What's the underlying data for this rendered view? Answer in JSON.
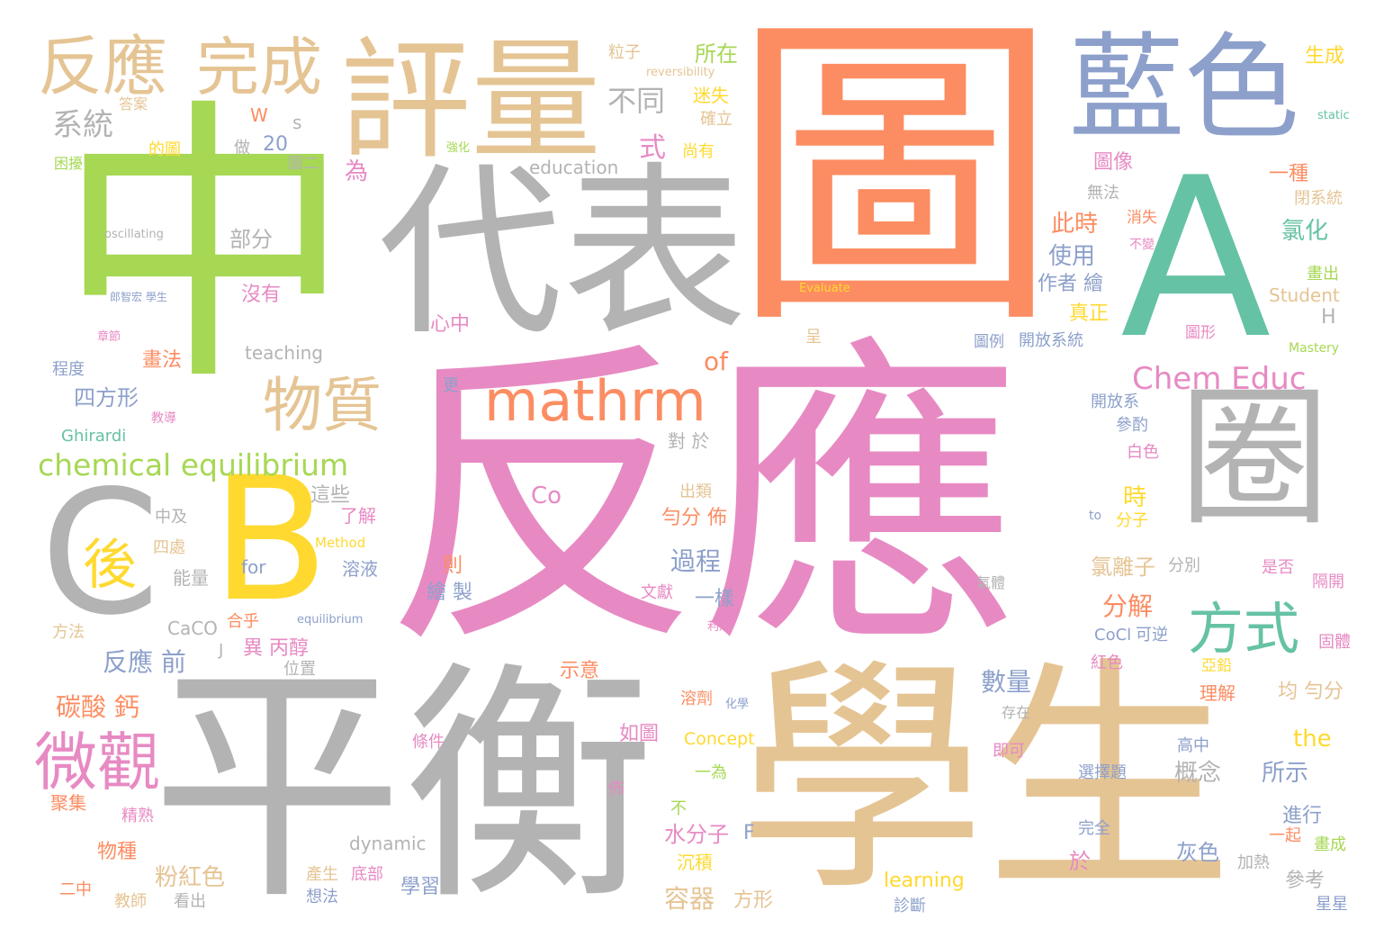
{
  "cloud": {
    "words": [
      {
        "text": "反應",
        "color": "#e78ac3"
      },
      {
        "text": "圖",
        "color": "#fc8d62"
      },
      {
        "text": "中",
        "color": "#a6d854"
      },
      {
        "text": "平衡",
        "color": "#b3b3b3"
      },
      {
        "text": "學生",
        "color": "#e5c494"
      },
      {
        "text": "代表",
        "color": "#b3b3b3"
      },
      {
        "text": "評量",
        "color": "#e5c494"
      },
      {
        "text": "藍色",
        "color": "#8da0cb"
      },
      {
        "text": "A",
        "color": "#66c2a5"
      },
      {
        "text": "B",
        "color": "#ffd92f"
      },
      {
        "text": "圈",
        "color": "#b3b3b3"
      },
      {
        "text": "C",
        "color": "#b3b3b3"
      },
      {
        "text": "反應",
        "color": "#e5c494"
      },
      {
        "text": "完成",
        "color": "#e5c494"
      },
      {
        "text": "mathrm",
        "color": "#fc8d62"
      },
      {
        "text": "物質",
        "color": "#e5c494"
      },
      {
        "text": "微觀",
        "color": "#e78ac3"
      },
      {
        "text": "方式",
        "color": "#66c2a5"
      },
      {
        "text": "後",
        "color": "#ffd92f"
      },
      {
        "text": "chemical equilibrium",
        "color": "#a6d854"
      },
      {
        "text": "Chem Educ",
        "color": "#e78ac3"
      },
      {
        "text": "系統",
        "color": "#b3b3b3"
      },
      {
        "text": "不同",
        "color": "#b3b3b3"
      },
      {
        "text": "所在",
        "color": "#a6d854"
      },
      {
        "text": "粒子",
        "color": "#e5c494"
      },
      {
        "text": "迷失",
        "color": "#ffd92f"
      },
      {
        "text": "確立",
        "color": "#e5c494"
      },
      {
        "text": "尚有",
        "color": "#ffd92f"
      },
      {
        "text": "reversibility",
        "color": "#e5c494"
      },
      {
        "text": "答案",
        "color": "#e5c494"
      },
      {
        "text": "W",
        "color": "#fc8d62"
      },
      {
        "text": "s",
        "color": "#b3b3b3"
      },
      {
        "text": "的圖",
        "color": "#ffd92f"
      },
      {
        "text": "做",
        "color": "#b3b3b3"
      },
      {
        "text": "20",
        "color": "#8da0cb"
      },
      {
        "text": "圖二",
        "color": "#b3b3b3"
      },
      {
        "text": "強化",
        "color": "#a6d854"
      },
      {
        "text": "式",
        "color": "#e78ac3"
      },
      {
        "text": "為",
        "color": "#e78ac3"
      },
      {
        "text": "education",
        "color": "#b3b3b3"
      },
      {
        "text": "困擾",
        "color": "#a6d854"
      },
      {
        "text": "oscillating",
        "color": "#b3b3b3"
      },
      {
        "text": "部分",
        "color": "#b3b3b3"
      },
      {
        "text": "完成",
        "color": "#a6d854"
      },
      {
        "text": "沒有",
        "color": "#e78ac3"
      },
      {
        "text": "郎智宏 學生",
        "color": "#8da0cb"
      },
      {
        "text": "teaching",
        "color": "#b3b3b3"
      },
      {
        "text": "畫法",
        "color": "#fc8d62"
      },
      {
        "text": "章節",
        "color": "#e78ac3"
      },
      {
        "text": "程度",
        "color": "#8da0cb"
      },
      {
        "text": "四方形",
        "color": "#8da0cb"
      },
      {
        "text": "教導",
        "color": "#e78ac3"
      },
      {
        "text": "Ghirardi",
        "color": "#66c2a5"
      },
      {
        "text": "心中",
        "color": "#e78ac3"
      },
      {
        "text": "of",
        "color": "#fc8d62"
      },
      {
        "text": "更",
        "color": "#8da0cb"
      },
      {
        "text": "對 於",
        "color": "#b3b3b3"
      },
      {
        "text": "這些",
        "color": "#b3b3b3"
      },
      {
        "text": "了解",
        "color": "#e78ac3"
      },
      {
        "text": "Co",
        "color": "#e78ac3"
      },
      {
        "text": "中及",
        "color": "#b3b3b3"
      },
      {
        "text": "四處",
        "color": "#e5c494"
      },
      {
        "text": "能量",
        "color": "#b3b3b3"
      },
      {
        "text": "Method",
        "color": "#ffd92f"
      },
      {
        "text": "for",
        "color": "#8da0cb"
      },
      {
        "text": "溶液",
        "color": "#8da0cb"
      },
      {
        "text": "均",
        "color": "#e78ac3"
      },
      {
        "text": "則",
        "color": "#fc8d62"
      },
      {
        "text": "繪 製",
        "color": "#8da0cb"
      },
      {
        "text": "過程",
        "color": "#8da0cb"
      },
      {
        "text": "勻分 佈",
        "color": "#fc8d62"
      },
      {
        "text": "出類",
        "color": "#e5c494"
      },
      {
        "text": "一樣",
        "color": "#8da0cb"
      },
      {
        "text": "文獻",
        "color": "#e78ac3"
      },
      {
        "text": "CaCO",
        "color": "#b3b3b3"
      },
      {
        "text": "合乎",
        "color": "#fc8d62"
      },
      {
        "text": "方法",
        "color": "#e5c494"
      },
      {
        "text": "equilibrium",
        "color": "#8da0cb"
      },
      {
        "text": "反應 前",
        "color": "#8da0cb"
      },
      {
        "text": "J",
        "color": "#b3b3b3"
      },
      {
        "text": "異 丙醇",
        "color": "#e78ac3"
      },
      {
        "text": "位置",
        "color": "#b3b3b3"
      },
      {
        "text": "示意",
        "color": "#fc8d62"
      },
      {
        "text": "碳酸 鈣",
        "color": "#fc8d62"
      },
      {
        "text": "如圖",
        "color": "#e78ac3"
      },
      {
        "text": "Concept",
        "color": "#ffd92f"
      },
      {
        "text": "條件",
        "color": "#e78ac3"
      },
      {
        "text": "佈",
        "color": "#e78ac3"
      },
      {
        "text": "聚集",
        "color": "#fc8d62"
      },
      {
        "text": "精熟",
        "color": "#e78ac3"
      },
      {
        "text": "物種",
        "color": "#fc8d62"
      },
      {
        "text": "粉紅色",
        "color": "#e5c494"
      },
      {
        "text": "水分子",
        "color": "#e78ac3"
      },
      {
        "text": "F",
        "color": "#8da0cb"
      },
      {
        "text": "dynamic",
        "color": "#b3b3b3"
      },
      {
        "text": "產生",
        "color": "#e5c494"
      },
      {
        "text": "底部",
        "color": "#e78ac3"
      },
      {
        "text": "學習",
        "color": "#8da0cb"
      },
      {
        "text": "想法",
        "color": "#8da0cb"
      },
      {
        "text": "容器",
        "color": "#e5c494"
      },
      {
        "text": "方形",
        "color": "#e5c494"
      },
      {
        "text": "二中",
        "color": "#fc8d62"
      },
      {
        "text": "教師",
        "color": "#e5c494"
      },
      {
        "text": "看出",
        "color": "#b3b3b3"
      },
      {
        "text": "不",
        "color": "#a6d854"
      },
      {
        "text": "沉積",
        "color": "#ffd92f"
      },
      {
        "text": "溶劑",
        "color": "#fc8d62"
      },
      {
        "text": "一為",
        "color": "#a6d854"
      },
      {
        "text": "learning",
        "color": "#ffd92f"
      },
      {
        "text": "數量",
        "color": "#8da0cb"
      },
      {
        "text": "概念",
        "color": "#b3b3b3"
      },
      {
        "text": "所示",
        "color": "#8da0cb"
      },
      {
        "text": "分解",
        "color": "#fc8d62"
      },
      {
        "text": "時",
        "color": "#ffd92f"
      },
      {
        "text": "氯離子",
        "color": "#e5c494"
      },
      {
        "text": "此時",
        "color": "#fc8d62"
      },
      {
        "text": "使用",
        "color": "#8da0cb"
      },
      {
        "text": "作者 繪",
        "color": "#8da0cb"
      },
      {
        "text": "真正",
        "color": "#ffd92f"
      },
      {
        "text": "生成",
        "color": "#ffd92f"
      },
      {
        "text": "static",
        "color": "#66c2a5"
      },
      {
        "text": "一種",
        "color": "#fc8d62"
      },
      {
        "text": "圖像",
        "color": "#e78ac3"
      },
      {
        "text": "無法",
        "color": "#b3b3b3"
      },
      {
        "text": "閉系統",
        "color": "#e5c494"
      },
      {
        "text": "氯化",
        "color": "#66c2a5"
      },
      {
        "text": "消失",
        "color": "#fc8d62"
      },
      {
        "text": "不變",
        "color": "#e78ac3"
      },
      {
        "text": "畫出",
        "color": "#a6d854"
      },
      {
        "text": "Student",
        "color": "#e5c494"
      },
      {
        "text": "H",
        "color": "#b3b3b3"
      },
      {
        "text": "Evaluate",
        "color": "#ffd92f"
      },
      {
        "text": "圖例",
        "color": "#8da0cb"
      },
      {
        "text": "開放系統",
        "color": "#8da0cb"
      },
      {
        "text": "圖形",
        "color": "#e78ac3"
      },
      {
        "text": "Mastery",
        "color": "#a6d854"
      },
      {
        "text": "呈",
        "color": "#e5c494"
      },
      {
        "text": "開放系",
        "color": "#8da0cb"
      },
      {
        "text": "參酌",
        "color": "#8da0cb"
      },
      {
        "text": "白色",
        "color": "#e78ac3"
      },
      {
        "text": "分子",
        "color": "#ffd92f"
      },
      {
        "text": "to",
        "color": "#8da0cb"
      },
      {
        "text": "分別",
        "color": "#b3b3b3"
      },
      {
        "text": "是否",
        "color": "#e78ac3"
      },
      {
        "text": "隔開",
        "color": "#e78ac3"
      },
      {
        "text": "CoCl",
        "color": "#8da0cb"
      },
      {
        "text": "可逆",
        "color": "#8da0cb"
      },
      {
        "text": "紅色",
        "color": "#e78ac3"
      },
      {
        "text": "亞鉛",
        "color": "#ffd92f"
      },
      {
        "text": "固體",
        "color": "#e78ac3"
      },
      {
        "text": "理解",
        "color": "#fc8d62"
      },
      {
        "text": "均 勻分",
        "color": "#e5c494"
      },
      {
        "text": "the",
        "color": "#ffd92f"
      },
      {
        "text": "高中",
        "color": "#8da0cb"
      },
      {
        "text": "星星",
        "color": "#8da0cb"
      },
      {
        "text": "即可",
        "color": "#e78ac3"
      },
      {
        "text": "選擇題",
        "color": "#8da0cb"
      },
      {
        "text": "完全",
        "color": "#8da0cb"
      },
      {
        "text": "進行",
        "color": "#8da0cb"
      },
      {
        "text": "一起",
        "color": "#fc8d62"
      },
      {
        "text": "畫成",
        "color": "#a6d854"
      },
      {
        "text": "灰色",
        "color": "#8da0cb"
      },
      {
        "text": "加熱",
        "color": "#b3b3b3"
      },
      {
        "text": "參考",
        "color": "#b3b3b3"
      },
      {
        "text": "於",
        "color": "#e78ac3"
      },
      {
        "text": "診斷",
        "color": "#8da0cb"
      },
      {
        "text": "存在",
        "color": "#b3b3b3"
      },
      {
        "text": "氣體",
        "color": "#b3b3b3"
      },
      {
        "text": "利用",
        "color": "#e78ac3"
      },
      {
        "text": "化學",
        "color": "#8da0cb"
      }
    ]
  }
}
